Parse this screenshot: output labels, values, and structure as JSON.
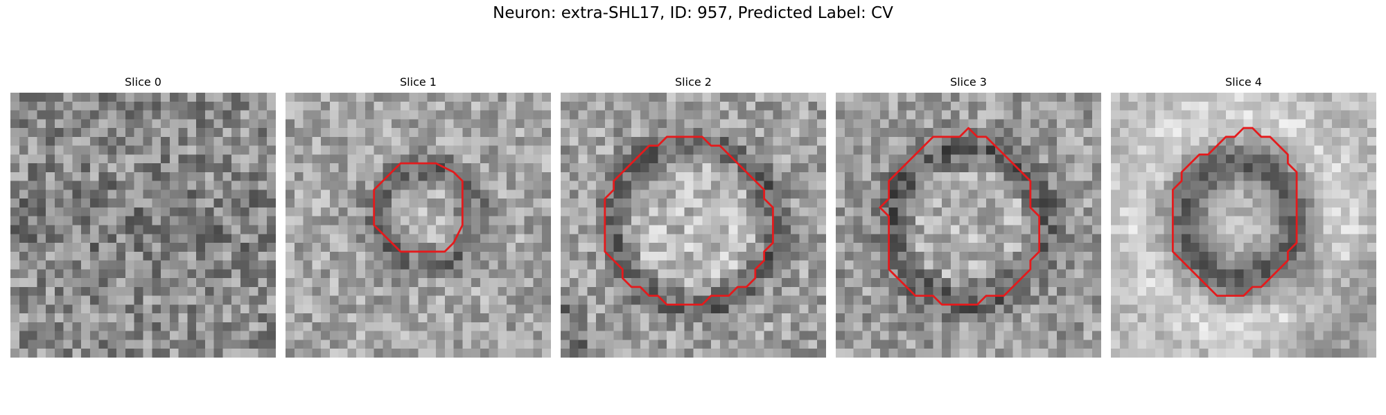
{
  "figure": {
    "title": "Neuron: extra-SHL17, ID: 957, Predicted Label: CV"
  },
  "colors": {
    "contour": "#e41a1c",
    "background": "#ffffff"
  },
  "panels": [
    {
      "title": "Slice 0",
      "has_contour": false,
      "contour": []
    },
    {
      "title": "Slice 1",
      "has_contour": true,
      "contour": [
        [
          13,
          8
        ],
        [
          17,
          8
        ],
        [
          19,
          9
        ],
        [
          20,
          10
        ],
        [
          20,
          11
        ],
        [
          20,
          15
        ],
        [
          19,
          17
        ],
        [
          18,
          18
        ],
        [
          17,
          18
        ],
        [
          13,
          18
        ],
        [
          12,
          17
        ],
        [
          11,
          16
        ],
        [
          10,
          15
        ],
        [
          10,
          11
        ],
        [
          11,
          10
        ],
        [
          12,
          9
        ]
      ]
    },
    {
      "title": "Slice 2",
      "has_contour": true,
      "contour": [
        [
          12,
          5
        ],
        [
          16,
          5
        ],
        [
          17,
          6
        ],
        [
          18,
          6
        ],
        [
          19,
          7
        ],
        [
          20,
          8
        ],
        [
          21,
          9
        ],
        [
          22,
          10
        ],
        [
          23,
          11
        ],
        [
          23,
          12
        ],
        [
          24,
          13
        ],
        [
          24,
          17
        ],
        [
          23,
          18
        ],
        [
          23,
          19
        ],
        [
          22,
          20
        ],
        [
          22,
          21
        ],
        [
          21,
          22
        ],
        [
          20,
          22
        ],
        [
          19,
          23
        ],
        [
          17,
          23
        ],
        [
          16,
          24
        ],
        [
          12,
          24
        ],
        [
          11,
          23
        ],
        [
          10,
          23
        ],
        [
          9,
          22
        ],
        [
          8,
          22
        ],
        [
          7,
          21
        ],
        [
          7,
          20
        ],
        [
          6,
          19
        ],
        [
          5,
          18
        ],
        [
          5,
          17
        ],
        [
          5,
          12
        ],
        [
          6,
          11
        ],
        [
          6,
          10
        ],
        [
          7,
          9
        ],
        [
          8,
          8
        ],
        [
          9,
          7
        ],
        [
          10,
          6
        ],
        [
          11,
          6
        ]
      ]
    },
    {
      "title": "Slice 3",
      "has_contour": true,
      "contour": [
        [
          12,
          5
        ],
        [
          14,
          5
        ],
        [
          15,
          4
        ],
        [
          16,
          5
        ],
        [
          17,
          5
        ],
        [
          18,
          6
        ],
        [
          19,
          7
        ],
        [
          20,
          8
        ],
        [
          21,
          9
        ],
        [
          22,
          10
        ],
        [
          22,
          13
        ],
        [
          23,
          14
        ],
        [
          23,
          18
        ],
        [
          22,
          19
        ],
        [
          22,
          20
        ],
        [
          21,
          21
        ],
        [
          20,
          22
        ],
        [
          19,
          23
        ],
        [
          17,
          23
        ],
        [
          16,
          24
        ],
        [
          12,
          24
        ],
        [
          11,
          23
        ],
        [
          9,
          23
        ],
        [
          8,
          22
        ],
        [
          7,
          21
        ],
        [
          6,
          20
        ],
        [
          6,
          14
        ],
        [
          5,
          13
        ],
        [
          6,
          12
        ],
        [
          6,
          10
        ],
        [
          7,
          9
        ],
        [
          8,
          8
        ],
        [
          9,
          7
        ],
        [
          10,
          6
        ],
        [
          11,
          5
        ]
      ]
    },
    {
      "title": "Slice 4",
      "has_contour": true,
      "contour": [
        [
          12,
          6
        ],
        [
          13,
          5
        ],
        [
          14,
          5
        ],
        [
          15,
          4
        ],
        [
          16,
          4
        ],
        [
          17,
          5
        ],
        [
          18,
          5
        ],
        [
          19,
          6
        ],
        [
          20,
          7
        ],
        [
          20,
          8
        ],
        [
          21,
          9
        ],
        [
          21,
          17
        ],
        [
          20,
          18
        ],
        [
          20,
          19
        ],
        [
          19,
          20
        ],
        [
          18,
          21
        ],
        [
          17,
          22
        ],
        [
          16,
          22
        ],
        [
          15,
          23
        ],
        [
          12,
          23
        ],
        [
          11,
          22
        ],
        [
          10,
          21
        ],
        [
          9,
          20
        ],
        [
          8,
          19
        ],
        [
          7,
          18
        ],
        [
          7,
          11
        ],
        [
          8,
          10
        ],
        [
          8,
          9
        ],
        [
          9,
          8
        ],
        [
          10,
          7
        ],
        [
          11,
          7
        ]
      ]
    }
  ]
}
